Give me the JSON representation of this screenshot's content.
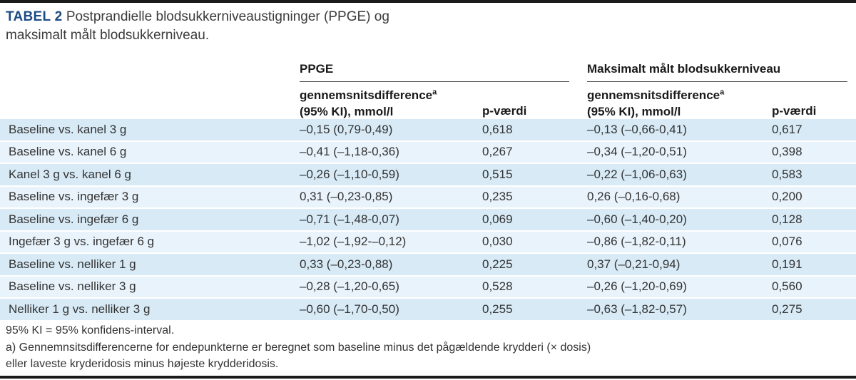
{
  "title": {
    "label": "TABEL 2",
    "text": "Postprandielle blodsukkerniveaustigninger (PPGE) og maksimalt målt blodsukkerniveau."
  },
  "table": {
    "groups": [
      {
        "label": "PPGE"
      },
      {
        "label": "Maksimalt målt blodsukkerniveau"
      }
    ],
    "subheaders": {
      "diff_line1": "gennemsnitsdifference",
      "diff_sup": "a",
      "diff_line2": "(95% KI), mmol/l",
      "p_label": "p-værdi"
    },
    "columns": [
      "comparison",
      "ppge_diff",
      "ppge_p",
      "max_diff",
      "max_p"
    ],
    "rows": [
      [
        "Baseline vs. kanel 3 g",
        "–0,15 (0,79-0,49)",
        "0,618",
        "–0,13 (–0,66-0,41)",
        "0,617"
      ],
      [
        "Baseline vs. kanel 6 g",
        "–0,41 (–1,18-0,36)",
        "0,267",
        "–0,34 (–1,20-0,51)",
        "0,398"
      ],
      [
        "Kanel 3 g vs. kanel 6 g",
        "–0,26 (–1,10-0,59)",
        "0,515",
        "–0,22 (–1,06-0,63)",
        "0,583"
      ],
      [
        "Baseline vs. ingefær 3 g",
        "0,31 (–0,23-0,85)",
        "0,235",
        "0,26 (–0,16-0,68)",
        "0,200"
      ],
      [
        "Baseline vs. ingefær 6 g",
        "–0,71 (–1,48-0,07)",
        "0,069",
        "–0,60 (–1,40-0,20)",
        "0,128"
      ],
      [
        "Ingefær 3 g vs. ingefær 6 g",
        "–1,02 (–1,92-–0,12)",
        "0,030",
        "–0,86 (–1,82-0,11)",
        "0,076"
      ],
      [
        "Baseline vs. nelliker 1 g",
        "0,33 (–0,23-0,88)",
        "0,225",
        "0,37 (–0,21-0,94)",
        "0,191"
      ],
      [
        "Baseline vs. nelliker 3 g",
        "–0,28 (–1,20-0,65)",
        "0,528",
        "–0,26 (–1,20-0,69)",
        "0,560"
      ],
      [
        "Nelliker 1 g vs. nelliker 3 g",
        "–0,60 (–1,70-0,50)",
        "0,255",
        "–0,63 (–1,82-0,57)",
        "0,275"
      ]
    ]
  },
  "footnotes": [
    "95% KI = 95% konfidens-interval.",
    "a) Gennemnsitsdifferencerne for endepunkterne er beregnet som baseline minus det pågældende krydderi (× dosis)",
    "eller laveste kryderidosis minus højeste krydderidosis."
  ],
  "colors": {
    "accent": "#1d4b84",
    "row-dark": "#d7eaf6",
    "row-light": "#e9f3fb",
    "bar": "#1a1a1a"
  }
}
